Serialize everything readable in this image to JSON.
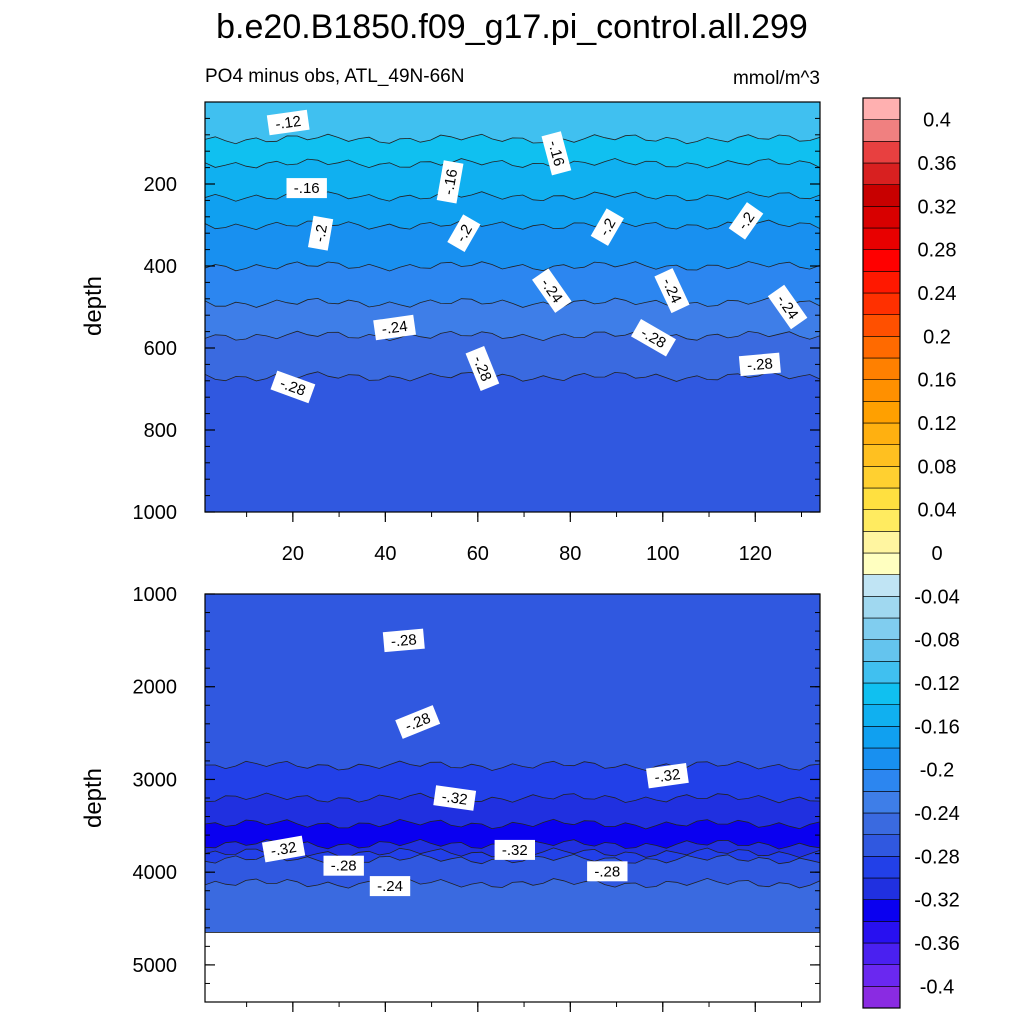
{
  "chart_data": {
    "type": "heatmap",
    "title": "b.e20.B1850.f09_g17.pi_control.all.299",
    "subtitle": "PO4 minus obs, ATL_49N-66N",
    "units": "mmol/m^3",
    "colorbar": {
      "levels": [
        -0.42,
        -0.4,
        -0.38,
        -0.36,
        -0.34,
        -0.32,
        -0.3,
        -0.28,
        -0.26,
        -0.24,
        -0.22,
        -0.2,
        -0.18,
        -0.16,
        -0.14,
        -0.12,
        -0.1,
        -0.08,
        -0.06,
        -0.04,
        -0.02,
        0,
        0.02,
        0.04,
        0.06,
        0.08,
        0.1,
        0.12,
        0.14,
        0.16,
        0.18,
        0.2,
        0.22,
        0.24,
        0.26,
        0.28,
        0.3,
        0.32,
        0.34,
        0.36,
        0.38,
        0.4,
        0.42
      ],
      "colors": [
        "#8a2be2",
        "#6a28f0",
        "#4a20f0",
        "#2810f0",
        "#0a00f0",
        "#2030e0",
        "#2240e8",
        "#3058e0",
        "#3a6ae0",
        "#3e7ee8",
        "#2c86f0",
        "#1890f0",
        "#10a0f0",
        "#10b0f0",
        "#10c0f0",
        "#40c0f0",
        "#64c4ee",
        "#80cdef",
        "#a0d8f0",
        "#c0e4f4",
        "#ffffc0",
        "#fff5a0",
        "#ffeb60",
        "#ffe040",
        "#ffd030",
        "#ffc020",
        "#ffb010",
        "#ffa000",
        "#ff9000",
        "#ff8000",
        "#ff6a00",
        "#ff5000",
        "#ff3000",
        "#ff1800",
        "#ff0000",
        "#e80000",
        "#d80000",
        "#c80000",
        "#d82020",
        "#e84040",
        "#f08080",
        "#ffb0b0"
      ],
      "tick_labels": [
        "0.4",
        "0.36",
        "0.32",
        "0.28",
        "0.24",
        "0.2",
        "0.16",
        "0.12",
        "0.08",
        "0.04",
        "0",
        "-0.04",
        "-0.08",
        "-0.12",
        "-0.16",
        "-0.2",
        "-0.24",
        "-0.28",
        "-0.32",
        "-0.36",
        "-0.4"
      ],
      "tick_values": [
        0.4,
        0.36,
        0.32,
        0.28,
        0.24,
        0.2,
        0.16,
        0.12,
        0.08,
        0.04,
        0,
        -0.04,
        -0.08,
        -0.12,
        -0.16,
        -0.2,
        -0.24,
        -0.28,
        -0.32,
        -0.36,
        -0.4
      ]
    },
    "panels": [
      {
        "name": "upper",
        "ylabel": "depth",
        "xlim": [
          1,
          134
        ],
        "ylim": [
          0,
          1000
        ],
        "y_reversed": true,
        "xticks": [
          20,
          40,
          60,
          80,
          100,
          120
        ],
        "xtick_labels": [
          "20",
          "40",
          "60",
          "80",
          "100",
          "120"
        ],
        "yticks": [
          200,
          400,
          600,
          800,
          1000
        ],
        "ytick_labels": [
          "200",
          "400",
          "600",
          "800",
          "1000"
        ],
        "bands": [
          {
            "top": 0,
            "bottom": 90,
            "value": -0.12
          },
          {
            "top": 90,
            "bottom": 150,
            "value": -0.14
          },
          {
            "top": 150,
            "bottom": 230,
            "value": -0.16
          },
          {
            "top": 230,
            "bottom": 300,
            "value": -0.18
          },
          {
            "top": 300,
            "bottom": 400,
            "value": -0.2
          },
          {
            "top": 400,
            "bottom": 490,
            "value": -0.22
          },
          {
            "top": 490,
            "bottom": 570,
            "value": -0.24
          },
          {
            "top": 570,
            "bottom": 670,
            "value": -0.26
          },
          {
            "top": 670,
            "bottom": 1000,
            "value": -0.28
          }
        ],
        "contour_labels": [
          {
            "x": 19,
            "y": 50,
            "text": "-.12",
            "rotate": -8
          },
          {
            "x": 23,
            "y": 210,
            "text": "-.16",
            "rotate": 0
          },
          {
            "x": 54,
            "y": 195,
            "text": "-.16",
            "rotate": -80
          },
          {
            "x": 77,
            "y": 125,
            "text": "-.16",
            "rotate": 75
          },
          {
            "x": 26,
            "y": 320,
            "text": "-.2",
            "rotate": -80
          },
          {
            "x": 57,
            "y": 320,
            "text": "-.2",
            "rotate": -60
          },
          {
            "x": 88,
            "y": 305,
            "text": "-.2",
            "rotate": -60
          },
          {
            "x": 118,
            "y": 290,
            "text": "-.2",
            "rotate": -55
          },
          {
            "x": 76,
            "y": 460,
            "text": "-.24",
            "rotate": 55
          },
          {
            "x": 102,
            "y": 460,
            "text": "-.24",
            "rotate": 65
          },
          {
            "x": 127,
            "y": 500,
            "text": "-.24",
            "rotate": 55
          },
          {
            "x": 42,
            "y": 550,
            "text": "-.24",
            "rotate": -8
          },
          {
            "x": 98,
            "y": 575,
            "text": "-.28",
            "rotate": 30
          },
          {
            "x": 61,
            "y": 650,
            "text": "-.28",
            "rotate": 68
          },
          {
            "x": 121,
            "y": 640,
            "text": "-.28",
            "rotate": -5
          },
          {
            "x": 20,
            "y": 695,
            "text": "-.28",
            "rotate": 20
          }
        ]
      },
      {
        "name": "lower",
        "ylabel": "depth",
        "xlim": [
          1,
          134
        ],
        "ylim": [
          1000,
          5400
        ],
        "y_reversed": true,
        "data_bottom": 4650,
        "yticks": [
          1000,
          2000,
          3000,
          4000,
          5000
        ],
        "ytick_labels": [
          "1000",
          "2000",
          "3000",
          "4000",
          "5000"
        ],
        "bands": [
          {
            "top": 1000,
            "bottom": 2850,
            "value": -0.28
          },
          {
            "top": 2850,
            "bottom": 3200,
            "value": -0.3
          },
          {
            "top": 3200,
            "bottom": 3480,
            "value": -0.32
          },
          {
            "top": 3480,
            "bottom": 3700,
            "value": -0.34
          },
          {
            "top": 3700,
            "bottom": 3790,
            "value": -0.32
          },
          {
            "top": 3790,
            "bottom": 3860,
            "value": -0.3
          },
          {
            "top": 3860,
            "bottom": 4120,
            "value": -0.28
          },
          {
            "top": 4120,
            "bottom": 4650,
            "value": -0.26
          }
        ],
        "contour_labels": [
          {
            "x": 44,
            "y": 1500,
            "text": "-.28",
            "rotate": -5
          },
          {
            "x": 47,
            "y": 2380,
            "text": "-.28",
            "rotate": -22
          },
          {
            "x": 101,
            "y": 2960,
            "text": "-.32",
            "rotate": -8
          },
          {
            "x": 55,
            "y": 3200,
            "text": "-.32",
            "rotate": 8
          },
          {
            "x": 18,
            "y": 3750,
            "text": "-.32",
            "rotate": -10
          },
          {
            "x": 68,
            "y": 3760,
            "text": "-.32",
            "rotate": 0
          },
          {
            "x": 31,
            "y": 3930,
            "text": "-.28",
            "rotate": 0
          },
          {
            "x": 88,
            "y": 3990,
            "text": "-.28",
            "rotate": 0
          },
          {
            "x": 41,
            "y": 4150,
            "text": "-.24",
            "rotate": 0
          }
        ]
      }
    ]
  }
}
